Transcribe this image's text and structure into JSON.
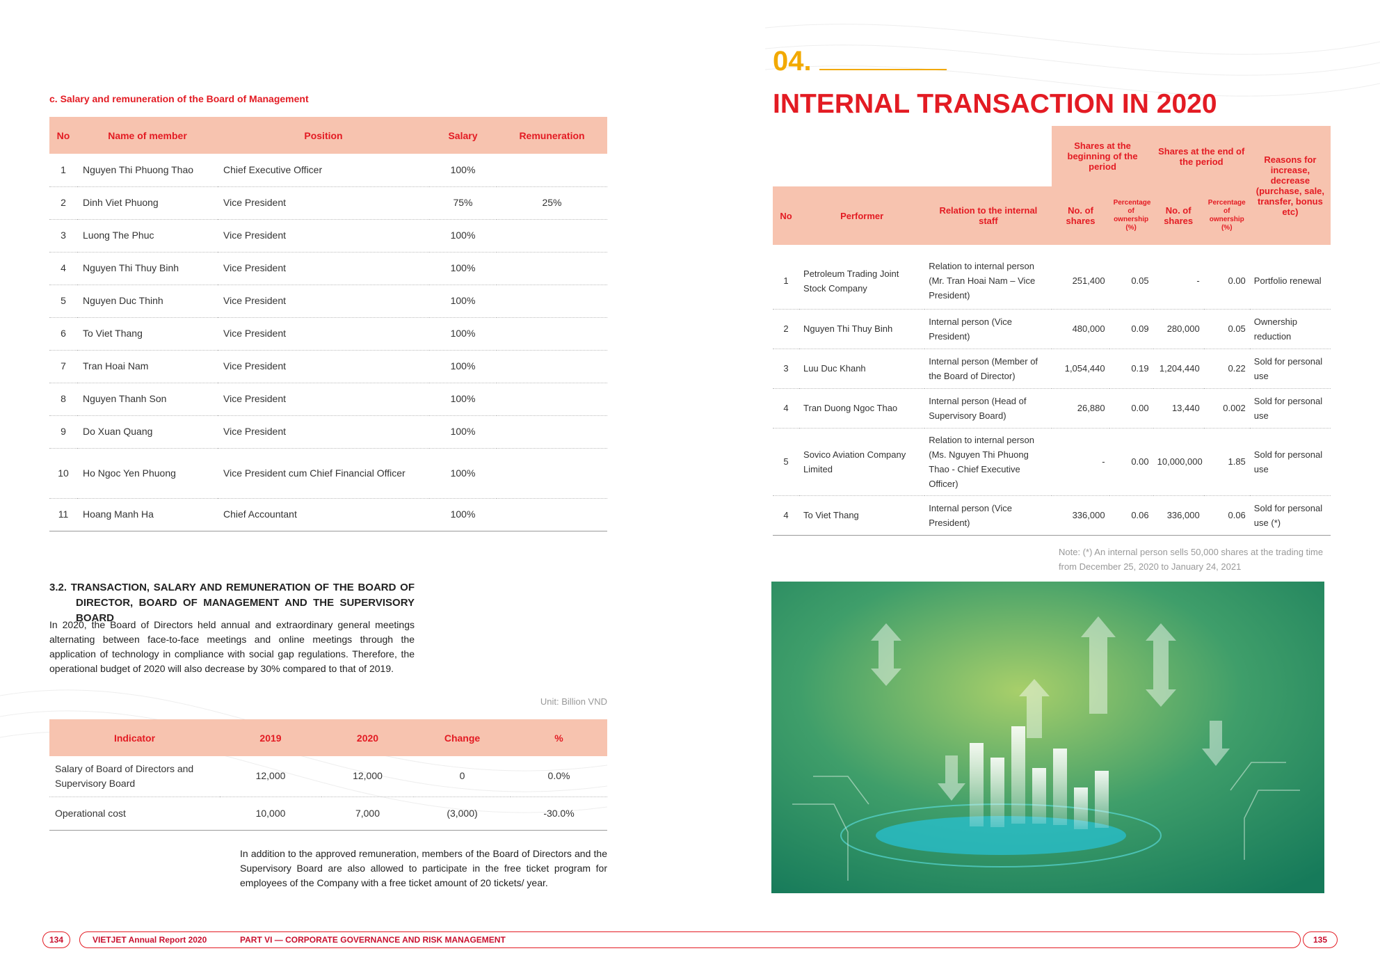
{
  "left": {
    "salary_title": "c. Salary and remuneration of the Board of Management",
    "salary_table": {
      "header": [
        "No",
        "Name of member",
        "Position",
        "Salary",
        "Remuneration"
      ],
      "rows": [
        [
          "1",
          "Nguyen Thi Phuong Thao",
          "Chief Executive Officer",
          "100%",
          ""
        ],
        [
          "2",
          "Dinh Viet Phuong",
          "Vice President",
          "75%",
          "25%"
        ],
        [
          "3",
          "Luong The Phuc",
          "Vice President",
          "100%",
          ""
        ],
        [
          "4",
          "Nguyen Thi Thuy Binh",
          "Vice President",
          "100%",
          ""
        ],
        [
          "5",
          "Nguyen Duc Thinh",
          "Vice President",
          "100%",
          ""
        ],
        [
          "6",
          "To Viet Thang",
          "Vice President",
          "100%",
          ""
        ],
        [
          "7",
          "Tran Hoai Nam",
          "Vice President",
          "100%",
          ""
        ],
        [
          "8",
          "Nguyen Thanh Son",
          "Vice President",
          "100%",
          ""
        ],
        [
          "9",
          "Do Xuan Quang",
          "Vice President",
          "100%",
          ""
        ],
        [
          "10",
          "Ho Ngoc Yen Phuong",
          "Vice President cum Chief Financial Officer",
          "100%",
          ""
        ],
        [
          "11",
          "Hoang Manh Ha",
          "Chief Accountant",
          "100%",
          ""
        ]
      ]
    },
    "section_title": "3.2. TRANSACTION, SALARY AND REMUNERATION OF THE BOARD OF DIRECTOR, BOARD OF MANAGEMENT AND THE SUPERVISORY BOARD",
    "section_text": "In 2020, the Board of Directors held annual and extraordinary general meetings alternating between face-to-face meetings and online meetings through the application of technology in compliance with social gap regulations. Therefore, the operational budget of 2020 will also decrease by 30% compared to that of 2019.",
    "unit": "Unit: Billion VND",
    "budget_table": {
      "header": [
        "Indicator",
        "2019",
        "2020",
        "Change",
        "%"
      ],
      "rows": [
        [
          "Salary of Board of Directors and Supervisory Board",
          "12,000",
          "12,000",
          "0",
          "0.0%"
        ],
        [
          "Operational cost",
          "10,000",
          "7,000",
          "(3,000)",
          "-30.0%"
        ]
      ]
    },
    "closing_text": "In addition to the approved remuneration, members of the Board of Directors and the Supervisory Board are also allowed to participate in the free ticket program for employees of the Company with a free ticket amount of 20 tickets/ year."
  },
  "right": {
    "number": "04.",
    "title": "INTERNAL TRANSACTION IN 2020",
    "transaction_table": {
      "group_header": [
        "Shares at the beginning of the period",
        "Shares at the end of the period",
        "Reasons for increase, decrease (purchase, sale, transfer, bonus etc)"
      ],
      "header": [
        "No",
        "Performer",
        "Relation to the internal staff",
        "No. of shares",
        "Percentage of ownership (%)",
        "No. of shares",
        "Percentage of ownership (%)"
      ],
      "rows": [
        [
          "1",
          "Petroleum Trading Joint Stock Company",
          "Relation to internal person (Mr. Tran Hoai Nam – Vice President)",
          "251,400",
          "0.05",
          "-",
          "0.00",
          "Portfolio renewal"
        ],
        [
          "2",
          "Nguyen Thi Thuy Binh",
          "Internal person (Vice President)",
          "480,000",
          "0.09",
          "280,000",
          "0.05",
          "Ownership reduction"
        ],
        [
          "3",
          "Luu Duc Khanh",
          "Internal person (Member of the Board of Director)",
          "1,054,440",
          "0.19",
          "1,204,440",
          "0.22",
          "Sold for personal use"
        ],
        [
          "4",
          "Tran Duong Ngoc Thao",
          "Internal person (Head of Supervisory Board)",
          "26,880",
          "0.00",
          "13,440",
          "0.002",
          "Sold for personal use"
        ],
        [
          "5",
          "Sovico Aviation Company Limited",
          "Relation to internal person (Ms. Nguyen Thi Phuong Thao - Chief Executive Officer)",
          "-",
          "0.00",
          "10,000,000",
          "1.85",
          "Sold for personal use"
        ],
        [
          "4",
          "To Viet Thang",
          "Internal person (Vice President)",
          "336,000",
          "0.06",
          "336,000",
          "0.06",
          "Sold for personal use (*)"
        ]
      ]
    },
    "note": "Note: (*) An internal person sells 50,000 shares at the trading time from December 25, 2020 to January 24, 2021"
  },
  "footer": {
    "left_page": "134",
    "report": "VIETJET Annual Report 2020",
    "part": "PART VI — CORPORATE GOVERNANCE AND RISK MANAGEMENT",
    "right_page": "135"
  }
}
